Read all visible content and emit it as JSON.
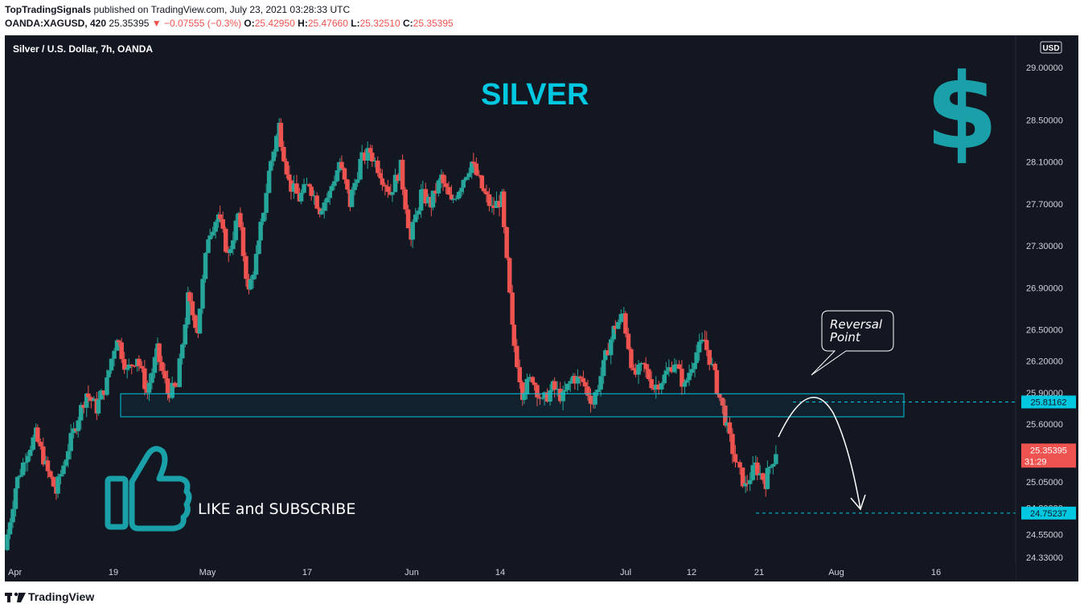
{
  "header": {
    "author": "TopTradingSignals",
    "published_text": " published on TradingView.com, July 23, 2021 03:28:33 UTC",
    "symbol": "OANDA:XAGUSD, 420",
    "last": "25.35395",
    "change": "▼ −0.07555 (−0.3%)",
    "o_label": "O:",
    "o_value": "25.42950",
    "h_label": "H:",
    "h_value": "25.47660",
    "l_label": "L:",
    "l_value": "25.32510",
    "c_label": "C:",
    "c_value": "25.35395"
  },
  "chart_title": "Silver / U.S. Dollar, 7h, OANDA",
  "currency_badge": "USD",
  "overlay": {
    "big_title": "SILVER",
    "dollar_symbol": "$",
    "callout": [
      "Reversal",
      "Point"
    ],
    "cta": "LIKE and SUBSCRIBE"
  },
  "footer": {
    "brand": "TradingView"
  },
  "colors": {
    "background": "#131722",
    "up": "#26a69a",
    "down": "#ef5350",
    "accent": "#00c8e0",
    "teal_icon": "#1aa0a8",
    "text": "#d1d4dc"
  },
  "chart_data": {
    "type": "candlestick",
    "title": "Silver / U.S. Dollar, 7h, OANDA",
    "ylim": [
      24.3,
      29.3
    ],
    "y_ticks": [
      "29.00000",
      "28.50000",
      "28.10000",
      "27.70000",
      "27.30000",
      "26.90000",
      "26.50000",
      "26.20000",
      "25.90000",
      "25.60000",
      "25.05000",
      "24.80000",
      "24.55000",
      "24.33000"
    ],
    "x_ticks": [
      "Apr",
      "19",
      "May",
      "17",
      "Jun",
      "14",
      "Jul",
      "12",
      "21",
      "Aug",
      "16"
    ],
    "price_labels": [
      {
        "value": "25.81162",
        "kind": "level"
      },
      {
        "value": "25.35395",
        "kind": "current",
        "countdown": "31:29"
      },
      {
        "value": "24.75237",
        "kind": "level"
      }
    ],
    "support_zone": [
      25.67,
      25.89
    ],
    "path": [
      [
        24.4,
        "Apr"
      ],
      [
        25.0,
        "Apr"
      ],
      [
        25.3,
        "Apr"
      ],
      [
        25.5,
        "Apr"
      ],
      [
        25.2,
        "Apr"
      ],
      [
        24.95,
        "Apr"
      ],
      [
        25.3,
        "Apr"
      ],
      [
        25.6,
        "Apr"
      ],
      [
        25.9,
        "19"
      ],
      [
        25.75,
        "19"
      ],
      [
        26.0,
        "19"
      ],
      [
        26.45,
        "19"
      ],
      [
        26.1,
        "19"
      ],
      [
        26.25,
        "19"
      ],
      [
        25.9,
        "19"
      ],
      [
        26.3,
        "19"
      ],
      [
        25.9,
        "19"
      ],
      [
        25.95,
        "May"
      ],
      [
        26.8,
        "May"
      ],
      [
        26.5,
        "May"
      ],
      [
        27.4,
        "May"
      ],
      [
        27.6,
        "May"
      ],
      [
        27.2,
        "May"
      ],
      [
        27.6,
        "May"
      ],
      [
        26.85,
        "May"
      ],
      [
        27.3,
        "May"
      ],
      [
        28.0,
        "17"
      ],
      [
        28.45,
        "17"
      ],
      [
        27.9,
        "17"
      ],
      [
        27.75,
        "17"
      ],
      [
        27.9,
        "17"
      ],
      [
        27.65,
        "17"
      ],
      [
        27.8,
        "17"
      ],
      [
        28.1,
        "17"
      ],
      [
        27.7,
        "17"
      ],
      [
        28.1,
        "17"
      ],
      [
        28.2,
        "Jun"
      ],
      [
        28.0,
        "Jun"
      ],
      [
        27.8,
        "Jun"
      ],
      [
        28.05,
        "Jun"
      ],
      [
        27.35,
        "Jun"
      ],
      [
        27.8,
        "Jun"
      ],
      [
        27.7,
        "Jun"
      ],
      [
        27.95,
        "Jun"
      ],
      [
        27.7,
        "Jun"
      ],
      [
        27.9,
        "14"
      ],
      [
        28.1,
        "14"
      ],
      [
        27.85,
        "14"
      ],
      [
        27.65,
        "14"
      ],
      [
        27.75,
        "14"
      ],
      [
        26.5,
        "14"
      ],
      [
        25.9,
        "14"
      ],
      [
        26.05,
        "14"
      ],
      [
        25.8,
        "14"
      ],
      [
        25.95,
        "14"
      ],
      [
        25.85,
        "Jul"
      ],
      [
        26.05,
        "Jul"
      ],
      [
        26.0,
        "Jul"
      ],
      [
        25.8,
        "Jul"
      ],
      [
        26.15,
        "Jul"
      ],
      [
        26.5,
        "Jul"
      ],
      [
        26.65,
        "Jul"
      ],
      [
        26.05,
        "Jul"
      ],
      [
        26.15,
        "12"
      ],
      [
        25.95,
        "12"
      ],
      [
        26.05,
        "12"
      ],
      [
        26.2,
        "12"
      ],
      [
        25.95,
        "12"
      ],
      [
        26.25,
        "12"
      ],
      [
        26.4,
        "12"
      ],
      [
        26.05,
        "12"
      ],
      [
        25.65,
        "21"
      ],
      [
        25.25,
        "21"
      ],
      [
        25.0,
        "21"
      ],
      [
        25.2,
        "21"
      ],
      [
        25.05,
        "21"
      ],
      [
        25.35,
        "21"
      ]
    ]
  }
}
